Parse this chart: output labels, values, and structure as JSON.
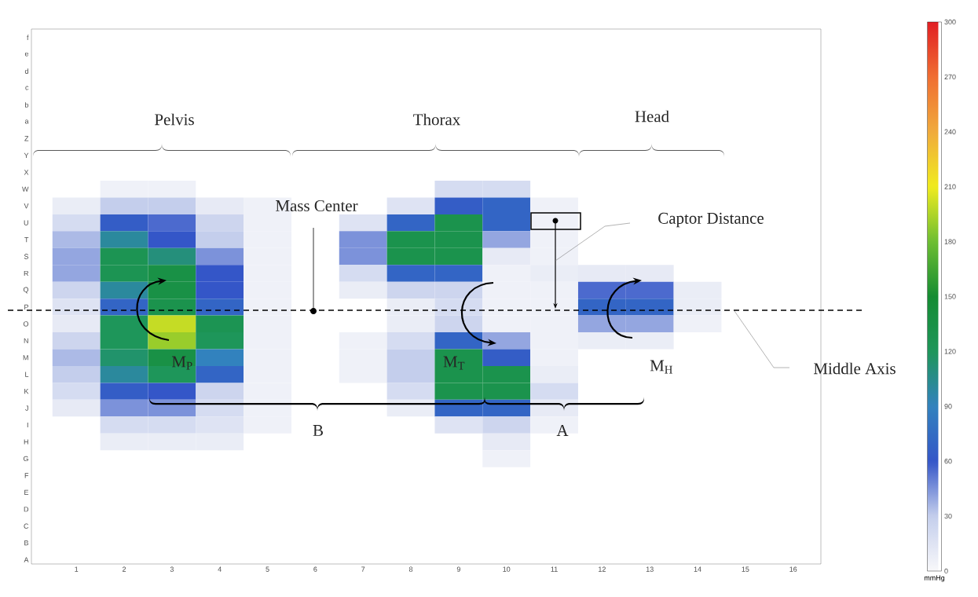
{
  "chart_data": {
    "type": "heatmap",
    "categories": [
      "1",
      "2",
      "3",
      "4",
      "5",
      "6",
      "7",
      "8",
      "9",
      "10",
      "11",
      "12",
      "13",
      "14",
      "15",
      "16"
    ],
    "y_categories": [
      "f",
      "e",
      "d",
      "c",
      "b",
      "a",
      "Z",
      "Y",
      "X",
      "W",
      "V",
      "U",
      "T",
      "S",
      "R",
      "Q",
      "P",
      "O",
      "N",
      "M",
      "L",
      "K",
      "J",
      "I",
      "H",
      "G",
      "F",
      "E",
      "D",
      "C",
      "B",
      "A"
    ],
    "cells": [
      [
        null,
        null,
        null,
        null,
        null,
        null,
        null,
        null,
        null,
        null,
        null,
        null,
        null,
        null,
        null,
        null
      ],
      [
        null,
        null,
        null,
        null,
        null,
        null,
        null,
        null,
        null,
        null,
        null,
        null,
        null,
        null,
        null,
        null
      ],
      [
        null,
        null,
        null,
        null,
        null,
        null,
        null,
        null,
        null,
        null,
        null,
        null,
        null,
        null,
        null,
        null
      ],
      [
        null,
        null,
        null,
        null,
        null,
        null,
        null,
        null,
        null,
        null,
        null,
        null,
        null,
        null,
        null,
        null
      ],
      [
        null,
        null,
        null,
        null,
        null,
        null,
        null,
        null,
        null,
        null,
        null,
        null,
        null,
        null,
        null,
        null
      ],
      [
        null,
        null,
        null,
        null,
        null,
        null,
        null,
        null,
        null,
        null,
        null,
        null,
        null,
        null,
        null,
        null
      ],
      [
        null,
        null,
        null,
        null,
        null,
        null,
        null,
        null,
        null,
        null,
        null,
        null,
        null,
        null,
        null,
        null
      ],
      [
        null,
        null,
        null,
        null,
        null,
        null,
        null,
        null,
        null,
        null,
        null,
        null,
        null,
        null,
        null,
        null
      ],
      [
        null,
        null,
        null,
        null,
        null,
        null,
        null,
        null,
        null,
        null,
        null,
        null,
        null,
        null,
        null,
        null
      ],
      [
        null,
        5,
        5,
        null,
        null,
        null,
        null,
        null,
        20,
        20,
        null,
        null,
        null,
        null,
        null,
        null
      ],
      [
        8,
        30,
        30,
        10,
        5,
        null,
        null,
        15,
        65,
        70,
        5,
        null,
        null,
        null,
        null,
        null
      ],
      [
        20,
        65,
        55,
        25,
        5,
        null,
        15,
        70,
        130,
        70,
        5,
        null,
        null,
        null,
        null,
        null
      ],
      [
        35,
        100,
        60,
        30,
        5,
        null,
        45,
        130,
        130,
        40,
        5,
        null,
        null,
        null,
        null,
        null
      ],
      [
        40,
        125,
        110,
        45,
        5,
        null,
        45,
        130,
        130,
        10,
        5,
        null,
        null,
        null,
        null,
        null
      ],
      [
        40,
        125,
        135,
        60,
        5,
        null,
        20,
        70,
        70,
        5,
        8,
        10,
        10,
        null,
        null,
        null
      ],
      [
        25,
        100,
        135,
        60,
        5,
        null,
        8,
        25,
        25,
        5,
        5,
        55,
        55,
        8,
        null,
        null
      ],
      [
        15,
        70,
        130,
        70,
        5,
        null,
        null,
        8,
        20,
        5,
        5,
        70,
        70,
        8,
        null,
        null
      ],
      [
        10,
        120,
        200,
        125,
        5,
        null,
        null,
        8,
        25,
        5,
        5,
        40,
        40,
        5,
        null,
        null
      ],
      [
        25,
        120,
        190,
        120,
        5,
        null,
        5,
        20,
        70,
        40,
        5,
        8,
        8,
        null,
        null,
        null
      ],
      [
        35,
        115,
        135,
        90,
        5,
        null,
        5,
        30,
        130,
        65,
        5,
        null,
        null,
        null,
        null,
        null
      ],
      [
        30,
        100,
        120,
        70,
        5,
        null,
        5,
        30,
        130,
        130,
        8,
        null,
        null,
        null,
        null,
        null
      ],
      [
        20,
        65,
        60,
        25,
        5,
        null,
        null,
        20,
        130,
        130,
        20,
        null,
        null,
        null,
        null,
        null
      ],
      [
        10,
        45,
        45,
        20,
        5,
        null,
        null,
        8,
        70,
        70,
        10,
        null,
        null,
        null,
        null,
        null
      ],
      [
        null,
        20,
        20,
        15,
        5,
        null,
        null,
        null,
        15,
        25,
        5,
        null,
        null,
        null,
        null,
        null
      ],
      [
        null,
        8,
        8,
        8,
        null,
        null,
        null,
        null,
        null,
        10,
        null,
        null,
        null,
        null,
        null,
        null
      ],
      [
        null,
        null,
        null,
        null,
        null,
        null,
        null,
        null,
        null,
        5,
        null,
        null,
        null,
        null,
        null,
        null
      ],
      [
        null,
        null,
        null,
        null,
        null,
        null,
        null,
        null,
        null,
        null,
        null,
        null,
        null,
        null,
        null,
        null
      ],
      [
        null,
        null,
        null,
        null,
        null,
        null,
        null,
        null,
        null,
        null,
        null,
        null,
        null,
        null,
        null,
        null
      ],
      [
        null,
        null,
        null,
        null,
        null,
        null,
        null,
        null,
        null,
        null,
        null,
        null,
        null,
        null,
        null,
        null
      ],
      [
        null,
        null,
        null,
        null,
        null,
        null,
        null,
        null,
        null,
        null,
        null,
        null,
        null,
        null,
        null,
        null
      ],
      [
        null,
        null,
        null,
        null,
        null,
        null,
        null,
        null,
        null,
        null,
        null,
        null,
        null,
        null,
        null,
        null
      ],
      [
        null,
        null,
        null,
        null,
        null,
        null,
        null,
        null,
        null,
        null,
        null,
        null,
        null,
        null,
        null,
        null
      ]
    ],
    "clim": [
      0,
      300
    ],
    "cticks": [
      0,
      30,
      60,
      90,
      120,
      150,
      180,
      210,
      240,
      270,
      300
    ],
    "clabel": "mmHg",
    "annotations": [
      "Pelvis",
      "Thorax",
      "Head",
      "Mass Center",
      "Captor Distance",
      "Middle Axis",
      "B",
      "A",
      "M$_{P}$",
      "M$_{T}$",
      "M$_{H}$"
    ]
  }
}
